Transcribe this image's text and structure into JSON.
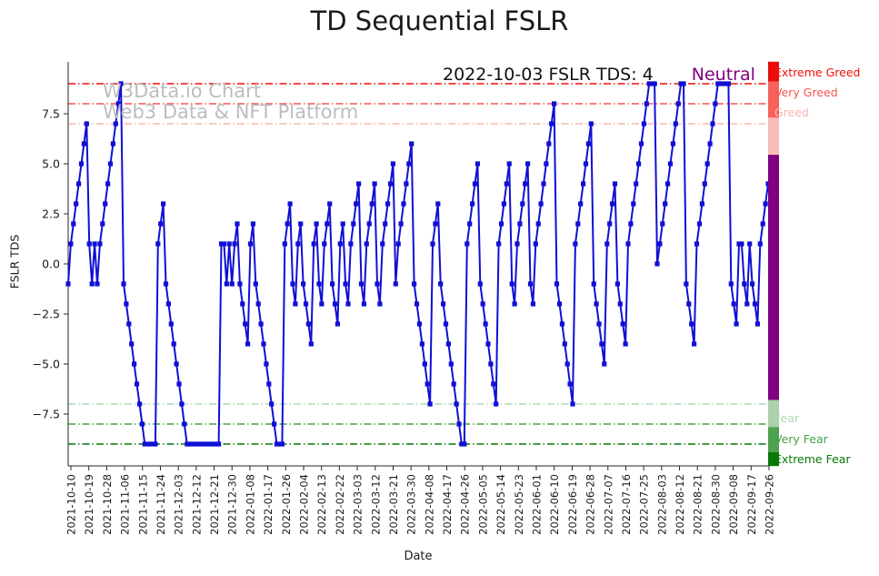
{
  "title": "TD Sequential FSLR",
  "annotation": {
    "text": "2022-10-03 FSLR TDS: 4",
    "status": "Neutral",
    "status_color": "#800080"
  },
  "watermark": {
    "line1": "W3Data.io Chart",
    "line2": "Web3 Data & NFT Platform"
  },
  "chart_data": {
    "type": "line",
    "title": "TD Sequential FSLR",
    "xlabel": "Date",
    "ylabel": "FSLR TDS",
    "ylim": [
      -10.1,
      10.1
    ],
    "grid": false,
    "legend_position": "none",
    "series_color": "#0f0fd6",
    "marker": "square",
    "y_ticks": [
      "7.5",
      "5.0",
      "2.5",
      "0.0",
      "−2.5",
      "−5.0",
      "−7.5"
    ],
    "y_tick_values": [
      7.5,
      5.0,
      2.5,
      0.0,
      -2.5,
      -5.0,
      -7.5
    ],
    "x_tick_labels": [
      "2021-10-10",
      "2021-10-19",
      "2021-10-28",
      "2021-11-06",
      "2021-11-15",
      "2021-11-24",
      "2021-12-03",
      "2021-12-12",
      "2021-12-21",
      "2021-12-30",
      "2022-01-08",
      "2022-01-17",
      "2022-01-26",
      "2022-02-04",
      "2022-02-13",
      "2022-02-22",
      "2022-03-03",
      "2022-03-12",
      "2022-03-21",
      "2022-03-30",
      "2022-04-08",
      "2022-04-17",
      "2022-04-26",
      "2022-05-05",
      "2022-05-14",
      "2022-05-23",
      "2022-06-01",
      "2022-06-10",
      "2022-06-19",
      "2022-06-28",
      "2022-07-07",
      "2022-07-16",
      "2022-07-25",
      "2022-08-03",
      "2022-08-12",
      "2022-08-21",
      "2022-08-30",
      "2022-09-08",
      "2022-09-17",
      "2022-09-26"
    ],
    "thresholds": [
      {
        "value": 9,
        "label": "Extreme Greed",
        "color": "#f20d0d"
      },
      {
        "value": 8,
        "label": "Very Greed",
        "color": "#f6554e"
      },
      {
        "value": 7,
        "label": "Greed",
        "color": "#fab6b2"
      },
      {
        "value": -7,
        "label": "Fear",
        "color": "#b2d8b2"
      },
      {
        "value": -8,
        "label": "Very Fear",
        "color": "#46a046"
      },
      {
        "value": -9,
        "label": "Extreme Fear",
        "color": "#077807"
      }
    ],
    "colorbar": [
      {
        "from": 10.1,
        "to": 9.1,
        "color": "#ea0c0c"
      },
      {
        "from": 9.1,
        "to": 7.3,
        "color": "#f7625c"
      },
      {
        "from": 7.3,
        "to": 5.45,
        "color": "#f9bcb8"
      },
      {
        "from": 5.45,
        "to": -6.8,
        "color": "#800080"
      },
      {
        "from": -6.8,
        "to": -8.15,
        "color": "#abd0ab"
      },
      {
        "from": -8.15,
        "to": -9.4,
        "color": "#4fa24f"
      },
      {
        "from": -9.4,
        "to": -10.1,
        "color": "#077a07"
      }
    ],
    "values": [
      -1,
      1,
      2,
      3,
      4,
      5,
      6,
      7,
      1,
      -1,
      1,
      -1,
      1,
      2,
      3,
      4,
      5,
      6,
      7,
      8,
      9,
      -1,
      -2,
      -3,
      -4,
      -5,
      -6,
      -7,
      -8,
      -9,
      -9,
      -9,
      -9,
      -9,
      1,
      2,
      3,
      -1,
      -2,
      -3,
      -4,
      -5,
      -6,
      -7,
      -8,
      -9,
      -9,
      -9,
      -9,
      -9,
      -9,
      -9,
      -9,
      -9,
      -9,
      -9,
      -9,
      -9,
      1,
      1,
      -1,
      1,
      -1,
      1,
      2,
      -1,
      -2,
      -3,
      -4,
      1,
      2,
      -1,
      -2,
      -3,
      -4,
      -5,
      -6,
      -7,
      -8,
      -9,
      -9,
      -9,
      1,
      2,
      3,
      -1,
      -2,
      1,
      2,
      -1,
      -2,
      -3,
      -4,
      1,
      2,
      -1,
      -2,
      1,
      2,
      3,
      -1,
      -2,
      -3,
      1,
      2,
      -1,
      -2,
      1,
      2,
      3,
      4,
      -1,
      -2,
      1,
      2,
      3,
      4,
      -1,
      -2,
      1,
      2,
      3,
      4,
      5,
      -1,
      1,
      2,
      3,
      4,
      5,
      6,
      -1,
      -2,
      -3,
      -4,
      -5,
      -6,
      -7,
      1,
      2,
      3,
      -1,
      -2,
      -3,
      -4,
      -5,
      -6,
      -7,
      -8,
      -9,
      -9,
      1,
      2,
      3,
      4,
      5,
      -1,
      -2,
      -3,
      -4,
      -5,
      -6,
      -7,
      1,
      2,
      3,
      4,
      5,
      -1,
      -2,
      1,
      2,
      3,
      4,
      5,
      -1,
      -2,
      1,
      2,
      3,
      4,
      5,
      6,
      7,
      8,
      -1,
      -2,
      -3,
      -4,
      -5,
      -6,
      -7,
      1,
      2,
      3,
      4,
      5,
      6,
      7,
      -1,
      -2,
      -3,
      -4,
      -5,
      1,
      2,
      3,
      4,
      -1,
      -2,
      -3,
      -4,
      1,
      2,
      3,
      4,
      5,
      6,
      7,
      8,
      9,
      9,
      9,
      0,
      1,
      2,
      3,
      4,
      5,
      6,
      7,
      8,
      9,
      9,
      -1,
      -2,
      -3,
      -4,
      1,
      2,
      3,
      4,
      5,
      6,
      7,
      8,
      9,
      9,
      9,
      9,
      9,
      -1,
      -2,
      -3,
      1,
      1,
      -1,
      -2,
      1,
      -1,
      -2,
      -3,
      1,
      2,
      3,
      4
    ]
  }
}
